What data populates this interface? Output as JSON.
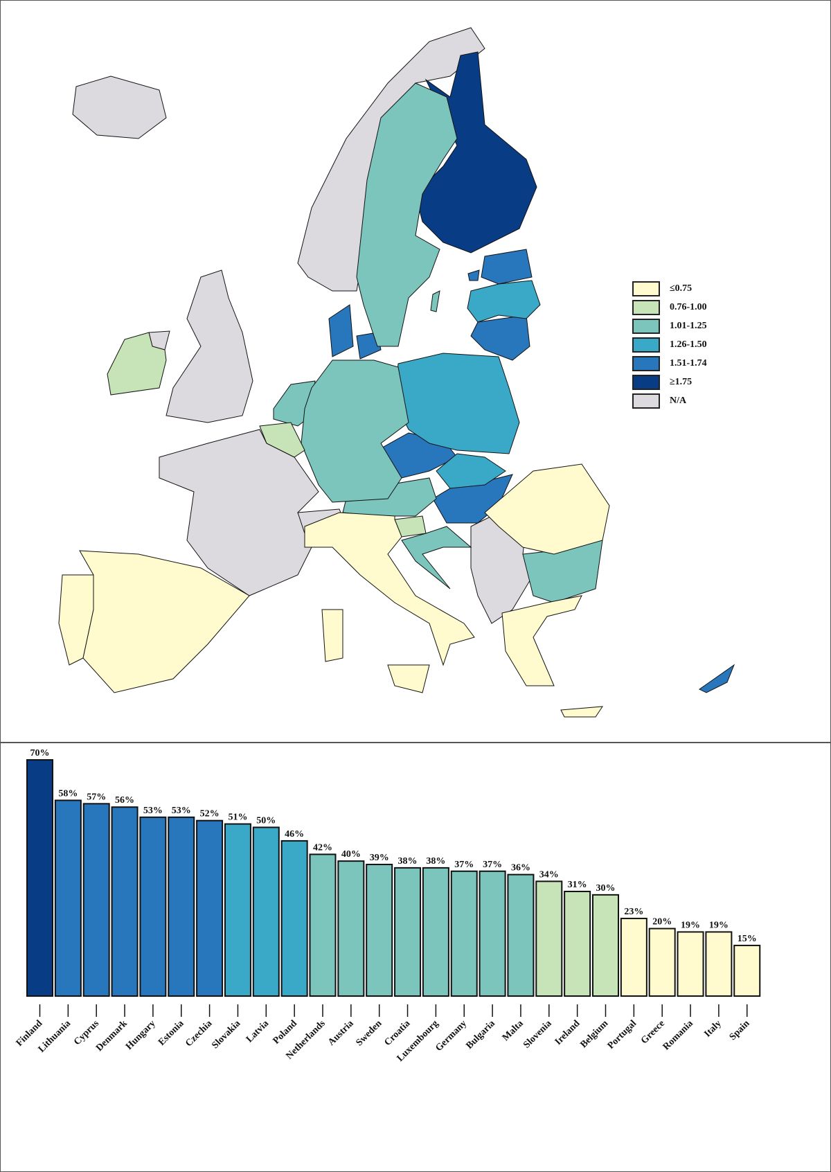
{
  "map": {
    "classes": {
      "c1": {
        "label": "≤0.75",
        "color": "#fffbce"
      },
      "c2": {
        "label": "0.76-1.00",
        "color": "#c7e4b8"
      },
      "c3": {
        "label": "1.01-1.25",
        "color": "#7cc5bc"
      },
      "c4": {
        "label": "1.26-1.50",
        "color": "#3aa9c8"
      },
      "c5": {
        "label": "1.51-1.74",
        "color": "#2877bd"
      },
      "c6": {
        "label": "≥1.75",
        "color": "#083d85"
      },
      "na": {
        "label": "N/A",
        "color": "#dcdadf"
      }
    },
    "legend_order": [
      "c1",
      "c2",
      "c3",
      "c4",
      "c5",
      "c6",
      "na"
    ],
    "countries": {
      "Iceland": "na",
      "Norway": "na",
      "United Kingdom": "na",
      "France": "na",
      "Switzerland": "na",
      "Western Balkans": "na",
      "Finland": "c6",
      "Lithuania": "c5",
      "Cyprus": "c5",
      "Denmark": "c5",
      "Hungary": "c5",
      "Estonia": "c5",
      "Czechia": "c5",
      "Slovakia": "c4",
      "Latvia": "c4",
      "Poland": "c4",
      "Netherlands": "c3",
      "Austria": "c3",
      "Sweden": "c3",
      "Croatia": "c3",
      "Germany": "c3",
      "Bulgaria": "c3",
      "Slovenia": "c2",
      "Ireland": "c2",
      "Belgium": "c2",
      "Portugal": "c1",
      "Greece": "c1",
      "Romania": "c1",
      "Italy": "c1",
      "Spain": "c1"
    }
  },
  "chart_data": {
    "type": "bar",
    "categories": [
      "Finland",
      "Lithuania",
      "Cyprus",
      "Denmark",
      "Hungary",
      "Estonia",
      "Czechia",
      "Slovakia",
      "Latvia",
      "Poland",
      "Netherlands",
      "Austria",
      "Sweden",
      "Croatia",
      "Luxembourg",
      "Germany",
      "Bulgaria",
      "Malta",
      "Slovenia",
      "Ireland",
      "Belgium",
      "Portugal",
      "Greece",
      "Romania",
      "Italy",
      "Spain"
    ],
    "values": [
      70,
      58,
      57,
      56,
      53,
      53,
      52,
      51,
      50,
      46,
      42,
      40,
      39,
      38,
      38,
      37,
      37,
      36,
      34,
      31,
      30,
      23,
      20,
      19,
      19,
      15
    ],
    "data_labels": [
      "70%",
      "58%",
      "57%",
      "56%",
      "53%",
      "53%",
      "52%",
      "51%",
      "50%",
      "46%",
      "42%",
      "40%",
      "39%",
      "38%",
      "38%",
      "37%",
      "37%",
      "36%",
      "34%",
      "31%",
      "30%",
      "23%",
      "20%",
      "19%",
      "19%",
      "15%"
    ],
    "bar_classes": [
      "c6",
      "c5",
      "c5",
      "c5",
      "c5",
      "c5",
      "c5",
      "c4",
      "c4",
      "c4",
      "c3",
      "c3",
      "c3",
      "c3",
      "c3",
      "c3",
      "c3",
      "c3",
      "c2",
      "c2",
      "c2",
      "c1",
      "c1",
      "c1",
      "c1",
      "c1"
    ],
    "ylim": [
      0,
      70
    ],
    "grid": false,
    "title": "",
    "xlabel": "",
    "ylabel": ""
  }
}
